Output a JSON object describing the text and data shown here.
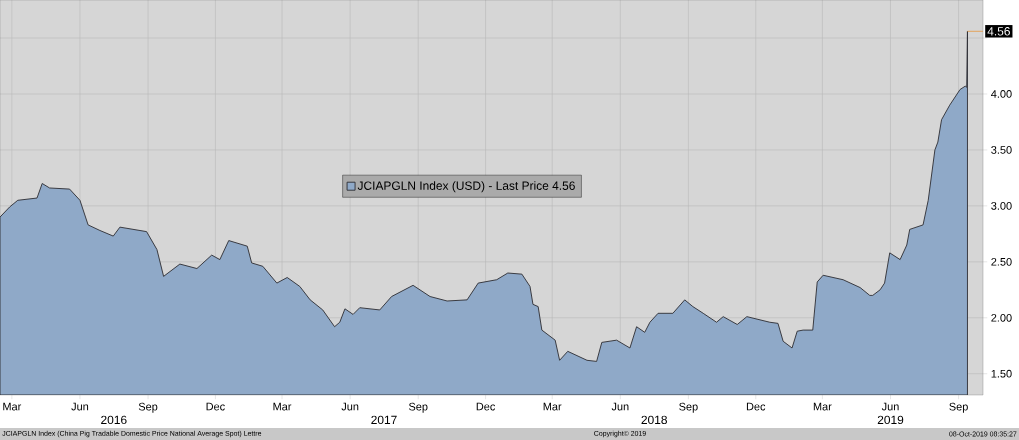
{
  "chart_data": {
    "type": "area",
    "x": [
      "2016-02-28",
      "2016-03-12",
      "2016-03-23",
      "2016-04-18",
      "2016-04-25",
      "2016-05-05",
      "2016-06-01",
      "2016-06-15",
      "2016-06-26",
      "2016-07-12",
      "2016-07-30",
      "2016-08-08",
      "2016-09-13",
      "2016-09-27",
      "2016-10-06",
      "2016-10-28",
      "2016-11-20",
      "2016-12-10",
      "2016-12-21",
      "2017-01-02",
      "2017-01-27",
      "2017-02-02",
      "2017-02-17",
      "2017-03-08",
      "2017-03-22",
      "2017-04-08",
      "2017-04-22",
      "2017-05-09",
      "2017-05-25",
      "2017-06-01",
      "2017-06-08",
      "2017-06-19",
      "2017-06-28",
      "2017-07-25",
      "2017-08-10",
      "2017-09-08",
      "2017-10-01",
      "2017-10-24",
      "2017-11-20",
      "2017-12-05",
      "2017-12-30",
      "2018-01-14",
      "2018-02-02",
      "2018-02-13",
      "2018-02-17",
      "2018-02-24",
      "2018-03-01",
      "2018-03-19",
      "2018-03-25",
      "2018-04-05",
      "2018-05-01",
      "2018-05-14",
      "2018-05-21",
      "2018-06-10",
      "2018-06-28",
      "2018-07-07",
      "2018-07-18",
      "2018-07-25",
      "2018-08-05",
      "2018-08-18",
      "2018-08-25",
      "2018-09-10",
      "2018-09-21",
      "2018-10-05",
      "2018-10-23",
      "2018-11-01",
      "2018-11-20",
      "2018-12-03",
      "2019-01-03",
      "2019-01-14",
      "2019-01-21",
      "2019-02-02",
      "2019-02-09",
      "2019-02-17",
      "2019-03-02",
      "2019-03-08",
      "2019-03-16",
      "2019-04-12",
      "2019-05-05",
      "2019-05-18",
      "2019-05-22",
      "2019-06-01",
      "2019-06-07",
      "2019-06-14",
      "2019-06-28",
      "2019-07-07",
      "2019-07-11",
      "2019-07-29",
      "2019-08-05",
      "2019-08-14",
      "2019-08-18",
      "2019-08-23",
      "2019-09-03",
      "2019-09-17",
      "2019-09-24",
      "2019-09-26",
      "2019-09-27"
    ],
    "series": [
      {
        "name": "JCIAPGLN Index (USD) - Last Price 4.56",
        "color": "#8fa9c8",
        "values": [
          2.9,
          2.99,
          3.05,
          3.07,
          3.2,
          3.16,
          3.15,
          3.05,
          2.83,
          2.78,
          2.73,
          2.81,
          2.77,
          2.61,
          2.37,
          2.48,
          2.44,
          2.56,
          2.52,
          2.69,
          2.64,
          2.49,
          2.46,
          2.31,
          2.36,
          2.28,
          2.16,
          2.07,
          1.92,
          1.96,
          2.08,
          2.03,
          2.09,
          2.07,
          2.19,
          2.29,
          2.19,
          2.15,
          2.16,
          2.31,
          2.34,
          2.4,
          2.39,
          2.28,
          2.12,
          2.1,
          1.89,
          1.8,
          1.62,
          1.7,
          1.62,
          1.61,
          1.78,
          1.8,
          1.73,
          1.92,
          1.87,
          1.96,
          2.04,
          2.04,
          2.04,
          2.16,
          2.1,
          2.04,
          1.96,
          2.01,
          1.94,
          2.01,
          1.96,
          1.95,
          1.79,
          1.73,
          1.88,
          1.89,
          1.89,
          2.32,
          2.38,
          2.34,
          2.27,
          2.2,
          2.2,
          2.25,
          2.31,
          2.58,
          2.52,
          2.65,
          2.79,
          2.83,
          3.05,
          3.5,
          3.57,
          3.77,
          3.9,
          4.04,
          4.07,
          4.06,
          4.56
        ]
      }
    ],
    "xlim": [
      "2016-02-28",
      "2019-10-18"
    ],
    "xticks": [
      {
        "value": "2016-03-15",
        "label": "Mar"
      },
      {
        "value": "2016-06-15",
        "label": "Jun"
      },
      {
        "value": "2016-09-15",
        "label": "Sep"
      },
      {
        "value": "2016-12-15",
        "label": "Dec"
      },
      {
        "value": "2017-03-15",
        "label": "Mar"
      },
      {
        "value": "2017-06-15",
        "label": "Jun"
      },
      {
        "value": "2017-09-15",
        "label": "Sep"
      },
      {
        "value": "2017-12-15",
        "label": "Dec"
      },
      {
        "value": "2018-03-15",
        "label": "Mar"
      },
      {
        "value": "2018-06-15",
        "label": "Jun"
      },
      {
        "value": "2018-09-15",
        "label": "Sep"
      },
      {
        "value": "2018-12-15",
        "label": "Dec"
      },
      {
        "value": "2019-03-15",
        "label": "Mar"
      },
      {
        "value": "2019-06-15",
        "label": "Jun"
      },
      {
        "value": "2019-09-15",
        "label": "Sep"
      }
    ],
    "ylim": [
      1.31,
      4.84
    ],
    "yticks": [
      {
        "value": 1.5,
        "label": "1.50"
      },
      {
        "value": 2,
        "label": "2.00"
      },
      {
        "value": 2.5,
        "label": "2.50"
      },
      {
        "value": 3,
        "label": "3.00"
      },
      {
        "value": 3.5,
        "label": "3.50"
      },
      {
        "value": 4,
        "label": "4.00"
      },
      {
        "value": 4.5,
        "label": null
      }
    ],
    "grid": true,
    "legend": "center",
    "annotations": [
      {
        "text": "4.56",
        "x": "2019-09-27",
        "y": 4.56
      },
      "2016",
      "2017",
      "2018",
      "2019",
      "JCIAPGLN Index (China Pig Tradable Domestic Price National Average Spot) Lettre",
      "Copyright© 2019",
      "08-Oct-2019 08:35:27"
    ]
  }
}
